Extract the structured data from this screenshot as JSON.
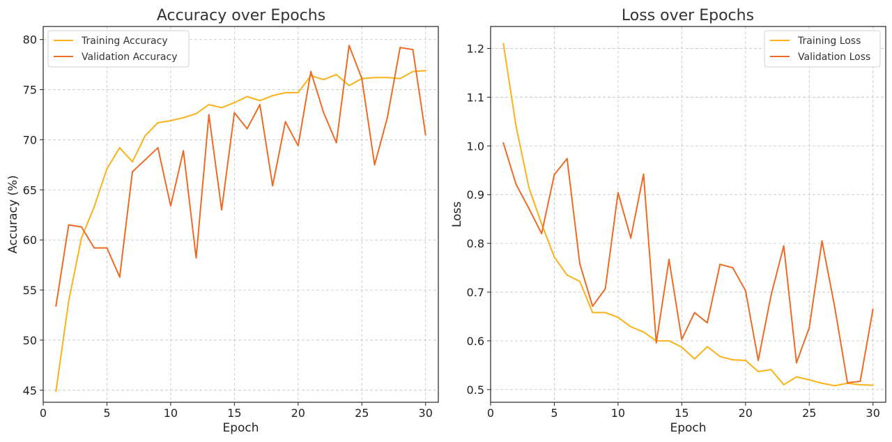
{
  "chart_data": [
    {
      "type": "line",
      "title": "Accuracy over Epochs",
      "xlabel": "Epoch",
      "ylabel": "Accuracy (%)",
      "xlim": [
        0,
        31
      ],
      "ylim": [
        43.8,
        81.3
      ],
      "xticks": [
        0,
        5,
        10,
        15,
        20,
        25,
        30
      ],
      "yticks": [
        45,
        50,
        55,
        60,
        65,
        70,
        75,
        80
      ],
      "grid": true,
      "legend": "top-left",
      "x": [
        1,
        2,
        3,
        4,
        5,
        6,
        7,
        8,
        9,
        10,
        11,
        12,
        13,
        14,
        15,
        16,
        17,
        18,
        19,
        20,
        21,
        22,
        23,
        24,
        25,
        26,
        27,
        28,
        29,
        30
      ],
      "series": [
        {
          "name": "Training Accuracy",
          "color": "#fbb117",
          "values": [
            44.9,
            53.9,
            60.2,
            63.3,
            67.1,
            69.2,
            67.8,
            70.4,
            71.7,
            71.9,
            72.2,
            72.6,
            73.5,
            73.2,
            73.7,
            74.3,
            73.9,
            74.4,
            74.7,
            74.7,
            76.4,
            76.0,
            76.5,
            75.4,
            76.1,
            76.2,
            76.2,
            76.1,
            76.8,
            76.9
          ]
        },
        {
          "name": "Validation Accuracy",
          "color": "#ed6a25",
          "values": [
            53.4,
            61.5,
            61.3,
            59.2,
            59.2,
            56.3,
            66.8,
            68.0,
            69.2,
            63.4,
            68.9,
            58.2,
            72.5,
            63.0,
            72.7,
            71.1,
            73.5,
            65.4,
            71.8,
            69.4,
            76.8,
            72.7,
            69.7,
            79.4,
            76.1,
            67.5,
            72.2,
            79.2,
            79.0,
            70.5
          ]
        }
      ]
    },
    {
      "type": "line",
      "title": "Loss over Epochs",
      "xlabel": "Epoch",
      "ylabel": "Loss",
      "xlim": [
        0,
        31
      ],
      "ylim": [
        0.474,
        1.245
      ],
      "xticks": [
        0,
        5,
        10,
        15,
        20,
        25,
        30
      ],
      "yticks": [
        0.5,
        0.6,
        0.7,
        0.8,
        0.9,
        1.0,
        1.1,
        1.2
      ],
      "ytick_labels": [
        "0.5",
        "0.6",
        "0.7",
        "0.8",
        "0.9",
        "1.0",
        "1.1",
        "1.2"
      ],
      "grid": true,
      "legend": "top-right",
      "x": [
        1,
        2,
        3,
        4,
        5,
        6,
        7,
        8,
        9,
        10,
        11,
        12,
        13,
        14,
        15,
        16,
        17,
        18,
        19,
        20,
        21,
        22,
        23,
        24,
        25,
        26,
        27,
        28,
        29,
        30
      ],
      "series": [
        {
          "name": "Training Loss",
          "color": "#fbb117",
          "values": [
            1.21,
            1.04,
            0.915,
            0.84,
            0.772,
            0.735,
            0.722,
            0.658,
            0.658,
            0.648,
            0.629,
            0.618,
            0.6,
            0.6,
            0.587,
            0.563,
            0.588,
            0.568,
            0.561,
            0.56,
            0.537,
            0.541,
            0.51,
            0.526,
            0.52,
            0.513,
            0.508,
            0.513,
            0.51,
            0.509
          ]
        },
        {
          "name": "Validation Loss",
          "color": "#ed6a25",
          "values": [
            1.006,
            0.921,
            0.872,
            0.82,
            0.941,
            0.974,
            0.758,
            0.671,
            0.707,
            0.904,
            0.811,
            0.942,
            0.596,
            0.767,
            0.603,
            0.658,
            0.637,
            0.757,
            0.75,
            0.703,
            0.56,
            0.693,
            0.795,
            0.555,
            0.627,
            0.805,
            0.669,
            0.514,
            0.517,
            0.665
          ]
        }
      ]
    }
  ]
}
